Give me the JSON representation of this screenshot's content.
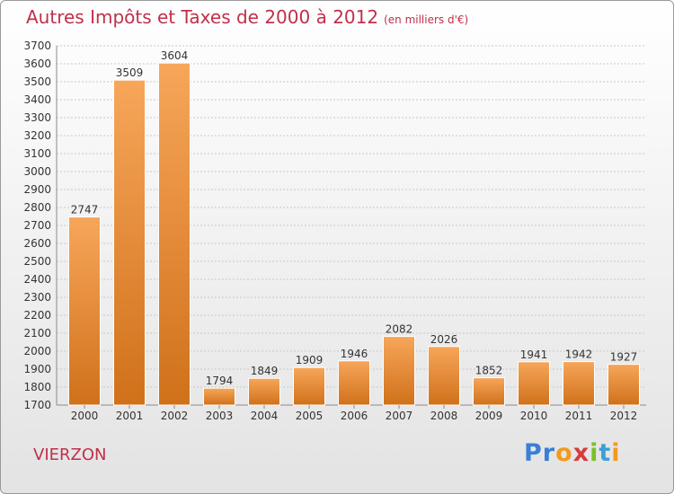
{
  "header": {
    "title": "Autres Impôts et Taxes de 2000 à 2012",
    "subtitle": "(en milliers d'€)"
  },
  "city": "VIERZON",
  "logo": {
    "text": "Proxiti",
    "letter_colors": [
      "#3a7fd6",
      "#3a7fd6",
      "#f39a1e",
      "#d83a3a",
      "#7cbf2a",
      "#3aa0d6",
      "#f39a1e"
    ]
  },
  "chart_data": {
    "type": "bar",
    "title": "Autres Impôts et Taxes de 2000 à 2012",
    "subtitle": "(en milliers d'€)",
    "categories": [
      "2000",
      "2001",
      "2002",
      "2003",
      "2004",
      "2005",
      "2006",
      "2007",
      "2008",
      "2009",
      "2010",
      "2011",
      "2012"
    ],
    "values": [
      2747,
      3509,
      3604,
      1794,
      1849,
      1909,
      1946,
      2082,
      2026,
      1852,
      1941,
      1942,
      1927
    ],
    "ylim": [
      1700,
      3700
    ],
    "yticks": [
      1700,
      1800,
      1900,
      2000,
      2100,
      2200,
      2300,
      2400,
      2500,
      2600,
      2700,
      2800,
      2900,
      3000,
      3100,
      3200,
      3300,
      3400,
      3500,
      3600,
      3700
    ],
    "grid": true,
    "bar_color_top": "#f7a65a",
    "bar_color_bottom": "#d0711a"
  }
}
